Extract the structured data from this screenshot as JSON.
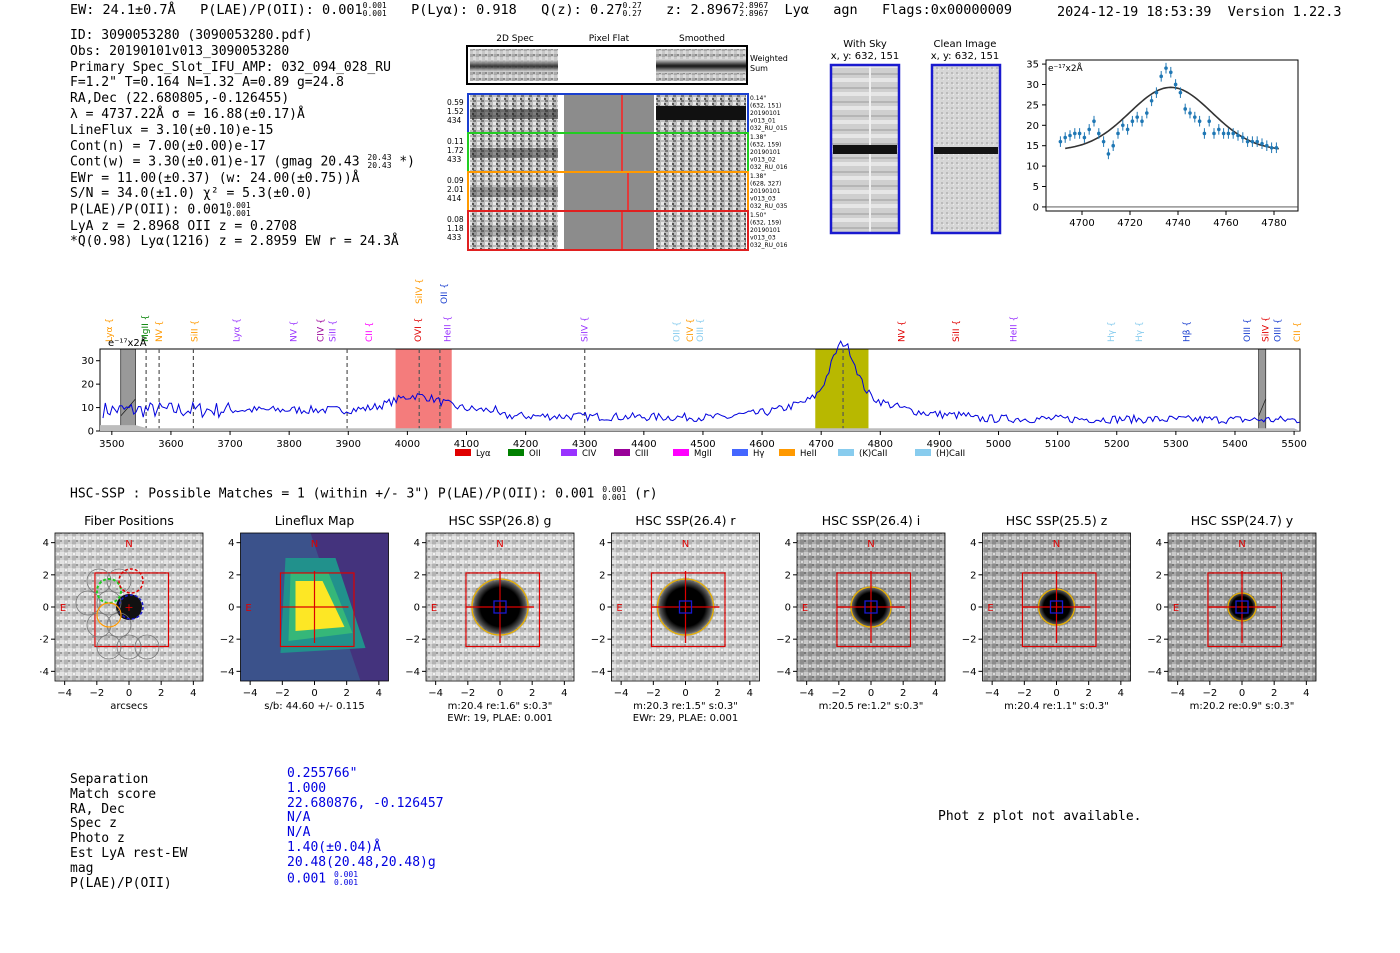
{
  "header": {
    "ew": "EW: 24.1±0.7Å",
    "plae": "P(LAE)/P(OII): 0.001",
    "plae_hi": "0.001",
    "plae_lo": "0.001",
    "plya": "P(Lyα): 0.918",
    "qz": "Q(z): 0.27",
    "qz_hi": "0.27",
    "qz_lo": "0.27",
    "z": "z: 2.8967",
    "z_hi": "2.8967",
    "z_lo": "2.8967",
    "line": "Lyα",
    "cls": "agn",
    "flags": "Flags:0x00000009",
    "datetime": "2024-12-19 18:53:39",
    "version": "Version 1.22.3"
  },
  "info": {
    "id": "ID: 3090053280 (3090053280.pdf)",
    "obs": "Obs: 20190101v013_3090053280",
    "primary": "Primary Spec_Slot_IFU_AMP: 032_094_028_RU",
    "fparams": "F=1.2\"  T=0.164  N=1.32  A=0.89  g=24.8",
    "radec": "RA,Dec (22.680805,-0.126455)",
    "lambda": "λ = 4737.22Å  σ = 16.88(±0.17)Å",
    "lineflux": "LineFlux = 3.10(±0.10)e-15",
    "contn": "Cont(n) = 7.00(±0.00)e-17",
    "contw": "Cont(w) = 3.30(±0.01)e-17 (gmag 20.43",
    "contw_hi": "20.43",
    "contw_lo": "20.43",
    "contw_end": "*)",
    "ewr": "EWr = 11.00(±0.37) (w: 24.00(±0.75))Å",
    "sn": "S/N = 34.0(±1.0)  χ² = 5.3(±0.0)",
    "plae": "P(LAE)/P(OII): 0.001",
    "plae_hi": "0.001",
    "plae_lo": "0.001",
    "lyaz": "LyA z = 2.8968  OII z = 0.2708",
    "q": "*Q(0.98) Lyα(1216) z = 2.8959  EW r = 24.3Å"
  },
  "spec2d": {
    "col_labels": [
      "2D Spec",
      "Pixel Flat",
      "Smoothed"
    ],
    "weighted": [
      "Weighted",
      "Sum"
    ],
    "rows": [
      {
        "left": [
          "0.59",
          "1.52",
          "434"
        ],
        "right": [
          "0.14\"",
          "(632, 151)",
          "20190101",
          "v013_01",
          "032_RU_015"
        ],
        "color": "#1a3fcf"
      },
      {
        "left": [
          "0.11",
          "1.72",
          "433"
        ],
        "right": [
          "1.38\"",
          "(632, 159)",
          "20190101",
          "v013_02",
          "032_RU_016"
        ],
        "color": "#22cc22"
      },
      {
        "left": [
          "0.09",
          "2.01",
          "414"
        ],
        "right": [
          "1.38\"",
          "(628, 327)",
          "20190101",
          "v013_03",
          "032_RU_035"
        ],
        "color": "#ff9900"
      },
      {
        "left": [
          "0.08",
          "1.18",
          "433"
        ],
        "right": [
          "1.50\"",
          "(632, 159)",
          "20190101",
          "v013_03",
          "032_RU_016"
        ],
        "color": "#e02020"
      }
    ]
  },
  "sky": {
    "with_sky": [
      "With Sky",
      "x, y: 632, 151"
    ],
    "clean": [
      "Clean Image",
      "x, y: 632, 151"
    ]
  },
  "fit_chart": {
    "type": "scatter",
    "unit": "e⁻¹⁷x2Å",
    "xticks": [
      4700,
      4720,
      4740,
      4760,
      4780
    ],
    "yticks": [
      0,
      5,
      10,
      15,
      20,
      25,
      30,
      35
    ],
    "xlim": [
      4685,
      4790
    ],
    "ylim": [
      -1,
      36
    ],
    "points": [
      [
        4691,
        16
      ],
      [
        4693,
        17
      ],
      [
        4695,
        17.5
      ],
      [
        4697,
        18
      ],
      [
        4699,
        18
      ],
      [
        4701,
        17
      ],
      [
        4703,
        19
      ],
      [
        4705,
        21
      ],
      [
        4707,
        18
      ],
      [
        4709,
        16
      ],
      [
        4711,
        13
      ],
      [
        4713,
        15
      ],
      [
        4715,
        18
      ],
      [
        4717,
        20
      ],
      [
        4719,
        19
      ],
      [
        4721,
        21
      ],
      [
        4723,
        22
      ],
      [
        4725,
        21
      ],
      [
        4727,
        23
      ],
      [
        4729,
        26
      ],
      [
        4731,
        28
      ],
      [
        4733,
        32
      ],
      [
        4735,
        34
      ],
      [
        4737,
        33
      ],
      [
        4739,
        30
      ],
      [
        4741,
        28
      ],
      [
        4743,
        24
      ],
      [
        4745,
        23
      ],
      [
        4747,
        22
      ],
      [
        4749,
        21
      ],
      [
        4751,
        18
      ],
      [
        4753,
        21
      ],
      [
        4755,
        18
      ],
      [
        4757,
        19
      ],
      [
        4759,
        18
      ],
      [
        4761,
        18
      ],
      [
        4763,
        18
      ],
      [
        4765,
        17.5
      ],
      [
        4767,
        17
      ],
      [
        4769,
        16
      ],
      [
        4771,
        16
      ],
      [
        4773,
        16
      ],
      [
        4775,
        15.5
      ],
      [
        4777,
        15
      ],
      [
        4779,
        14.5
      ],
      [
        4781,
        14.5
      ]
    ],
    "model": {
      "amp": 15.5,
      "mu": 4737,
      "sigma": 17,
      "a": 13.8,
      "b": 0.0
    }
  },
  "spectrum": {
    "type": "line",
    "unit": "e⁻¹⁷x2Å",
    "xlim": [
      3480,
      5510
    ],
    "ylim": [
      0,
      35
    ],
    "xticks": [
      3500,
      3600,
      3700,
      3800,
      3900,
      4000,
      4100,
      4200,
      4300,
      4400,
      4500,
      4600,
      4700,
      4800,
      4900,
      5000,
      5100,
      5200,
      5300,
      5400,
      5500
    ],
    "yticks": [
      0,
      10,
      20,
      30
    ],
    "red_band": [
      3980,
      4075
    ],
    "olive_band": [
      4690,
      4780
    ],
    "grey_bands": [
      [
        3515,
        3540
      ],
      [
        5440,
        5452
      ]
    ],
    "dashed_lines": [
      3558,
      3580,
      3638,
      3898,
      4020,
      4055,
      4300,
      4737
    ],
    "lines": [
      {
        "name": "Lyα",
        "x": 3495,
        "color": "#ff9900",
        "row": 0
      },
      {
        "name": "MgII",
        "x": 3556,
        "color": "#008000",
        "row": 0
      },
      {
        "name": "NV",
        "x": 3580,
        "color": "#ff9900",
        "row": 0
      },
      {
        "name": "SiII",
        "x": 3640,
        "color": "#ff9900",
        "row": 0
      },
      {
        "name": "Lyα",
        "x": 3711,
        "color": "#9933ff",
        "row": 0
      },
      {
        "name": "NV",
        "x": 3807,
        "color": "#9933ff",
        "row": 0
      },
      {
        "name": "CIV",
        "x": 3853,
        "color": "#990099",
        "row": 0
      },
      {
        "name": "SiII",
        "x": 3873,
        "color": "#9933ff",
        "row": 0
      },
      {
        "name": "CII",
        "x": 3935,
        "color": "#ff00ff",
        "row": 0
      },
      {
        "name": "OVI",
        "x": 4018,
        "color": "#e00000",
        "row": 0
      },
      {
        "name": "HeII",
        "x": 4068,
        "color": "#9933ff",
        "row": 0
      },
      {
        "name": "SiIV",
        "x": 4020,
        "color": "#ff9900",
        "row": 1
      },
      {
        "name": "OII",
        "x": 4062,
        "color": "#1a3fcf",
        "row": 1
      },
      {
        "name": "SiIV",
        "x": 4300,
        "color": "#9933ff",
        "row": 0
      },
      {
        "name": "OII",
        "x": 4455,
        "color": "#88ccee",
        "row": 0
      },
      {
        "name": "CIV",
        "x": 4478,
        "color": "#ff9900",
        "row": 0
      },
      {
        "name": "OIII",
        "x": 4495,
        "color": "#88ccee",
        "row": 0
      },
      {
        "name": "NV",
        "x": 4836,
        "color": "#e00000",
        "row": 0
      },
      {
        "name": "SiII",
        "x": 4928,
        "color": "#e00000",
        "row": 0
      },
      {
        "name": "HeII",
        "x": 5025,
        "color": "#9933ff",
        "row": 0
      },
      {
        "name": "Hγ",
        "x": 5190,
        "color": "#88ccee",
        "row": 0
      },
      {
        "name": "Hγ",
        "x": 5238,
        "color": "#88ccee",
        "row": 0
      },
      {
        "name": "Hβ",
        "x": 5318,
        "color": "#1a3fcf",
        "row": 0
      },
      {
        "name": "OIII",
        "x": 5420,
        "color": "#1a3fcf",
        "row": 0
      },
      {
        "name": "SiIV",
        "x": 5452,
        "color": "#e00000",
        "row": 0
      },
      {
        "name": "OIII",
        "x": 5472,
        "color": "#1a3fcf",
        "row": 0
      },
      {
        "name": "CII",
        "x": 5505,
        "color": "#ff9900",
        "row": 0
      }
    ],
    "legend": [
      {
        "label": "Lyα",
        "color": "#e00000"
      },
      {
        "label": "OII",
        "color": "#008000"
      },
      {
        "label": "CIV",
        "color": "#9933ff"
      },
      {
        "label": "CIII",
        "color": "#990099"
      },
      {
        "label": "MgII",
        "color": "#ff00ff"
      },
      {
        "label": "Hγ",
        "color": "#4466ff"
      },
      {
        "label": "HeII",
        "color": "#ff9900"
      },
      {
        "label": "(K)CaII",
        "color": "#88ccee"
      },
      {
        "label": "(H)CaII",
        "color": "#88ccee"
      }
    ]
  },
  "hsc": {
    "title": "HSC-SSP : Possible Matches = 1 (within +/- 3\")  P(LAE)/P(OII): 0.001",
    "title_hi": "0.001",
    "title_lo": "0.001",
    "title_end": "(r)",
    "ticks": [
      -4,
      -2,
      0,
      2,
      4
    ],
    "panels": [
      {
        "title": "Fiber Positions",
        "cap1": "arcsecs",
        "cap2": ""
      },
      {
        "title": "Lineflux Map",
        "cap1": "s/b: 44.60 +/- 0.115",
        "cap2": ""
      },
      {
        "title": "HSC SSP(26.8) g",
        "cap1": "m:20.4  re:1.6\"  s:0.3\"",
        "cap2": "EWr: 19, PLAE: 0.001"
      },
      {
        "title": "HSC SSP(26.4) r",
        "cap1": "m:20.3  re:1.5\"  s:0.3\"",
        "cap2": "EWr: 29, PLAE: 0.001"
      },
      {
        "title": "HSC SSP(26.4) i",
        "cap1": "m:20.5  re:1.2\"  s:0.3\"",
        "cap2": ""
      },
      {
        "title": "HSC SSP(25.5) z",
        "cap1": "m:20.4  re:1.1\"  s:0.3\"",
        "cap2": ""
      },
      {
        "title": "HSC SSP(24.7) y",
        "cap1": "m:20.2  re:0.9\"  s:0.3\"",
        "cap2": ""
      }
    ],
    "compass_n": "N",
    "compass_e": "E"
  },
  "match": {
    "labels": [
      "Separation",
      "Match score",
      "RA, Dec",
      "Spec z",
      "Photo z",
      "Est LyA rest-EW",
      "mag",
      "P(LAE)/P(OII)"
    ],
    "values": [
      "0.255766\"",
      "1.000",
      "22.680876, -0.126457",
      "N/A",
      "N/A",
      "1.40(±0.04)Å",
      "20.48(20.48,20.48)g",
      "0.001"
    ],
    "plae_hi": "0.001",
    "plae_lo": "0.001"
  },
  "photz": "Phot z plot not available."
}
